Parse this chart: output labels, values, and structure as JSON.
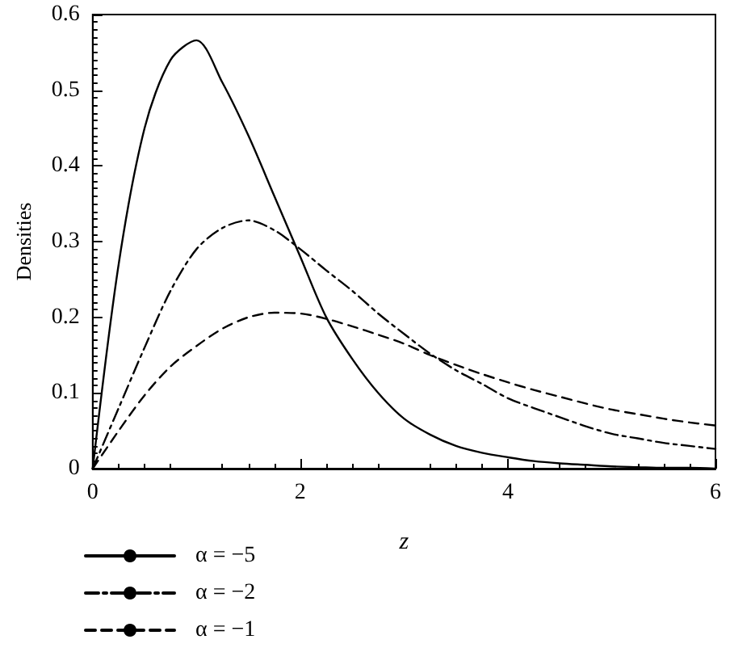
{
  "chart_data": {
    "type": "line",
    "xlabel": "z",
    "ylabel": "Densities",
    "xlim": [
      0,
      6
    ],
    "xticks": [
      0,
      2,
      4,
      6
    ],
    "ylim": [
      0,
      0.6
    ],
    "yticks": [
      0,
      0.1,
      0.2,
      0.3,
      0.4,
      0.5,
      0.6
    ],
    "grid": false,
    "legend": "bottom left",
    "marker": "none",
    "x": [
      0,
      0.25,
      0.5,
      0.75,
      1,
      1.25,
      1.5,
      1.75,
      2,
      2.25,
      2.5,
      2.75,
      3,
      3.25,
      3.5,
      3.75,
      4,
      4.25,
      4.5,
      4.75,
      5,
      5.25,
      5.5,
      5.75,
      6
    ],
    "series": [
      {
        "name": "α = −5",
        "color": "#000000",
        "line_style": "solid",
        "values": [
          0,
          0.27,
          0.45,
          0.54,
          0.566,
          0.51,
          0.44,
          0.36,
          0.28,
          0.2,
          0.145,
          0.1,
          0.066,
          0.045,
          0.03,
          0.021,
          0.015,
          0.01,
          0.007,
          0.005,
          0.003,
          0.002,
          0.001,
          0.001,
          0
        ]
      },
      {
        "name": "α = −2",
        "color": "#000000",
        "line_style": "dashdot",
        "values": [
          0,
          0.08,
          0.16,
          0.235,
          0.29,
          0.318,
          0.328,
          0.315,
          0.29,
          0.262,
          0.235,
          0.205,
          0.178,
          0.152,
          0.13,
          0.112,
          0.093,
          0.08,
          0.068,
          0.056,
          0.046,
          0.04,
          0.034,
          0.03,
          0.026
        ]
      },
      {
        "name": "α = −1",
        "color": "#000000",
        "line_style": "dashed",
        "values": [
          0,
          0.05,
          0.097,
          0.135,
          0.162,
          0.185,
          0.2,
          0.206,
          0.205,
          0.198,
          0.188,
          0.177,
          0.165,
          0.15,
          0.137,
          0.125,
          0.114,
          0.104,
          0.095,
          0.086,
          0.078,
          0.072,
          0.066,
          0.061,
          0.057
        ]
      }
    ]
  }
}
